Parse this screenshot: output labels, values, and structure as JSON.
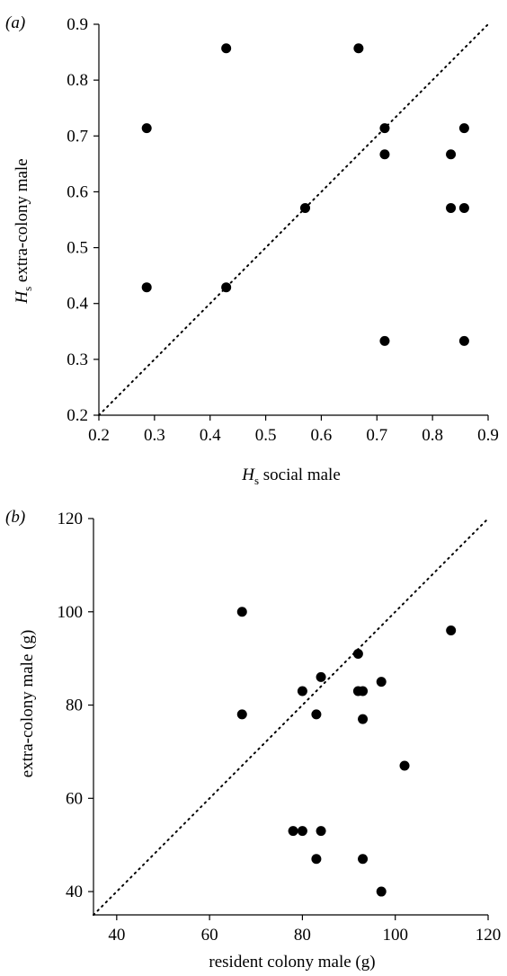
{
  "chart_data": [
    {
      "type": "scatter",
      "panel_label": "(a)",
      "xlabel": "H",
      "xlabel_sub": "s",
      "xlabel_rest": " social male",
      "ylabel": "H",
      "ylabel_sub": "s",
      "ylabel_rest": " extra-colony male",
      "xlim": [
        0.2,
        0.9
      ],
      "ylim": [
        0.2,
        0.9
      ],
      "xticks": [
        "0.2",
        "0.3",
        "0.4",
        "0.5",
        "0.6",
        "0.7",
        "0.8",
        "0.9"
      ],
      "yticks": [
        "0.2",
        "0.3",
        "0.4",
        "0.5",
        "0.6",
        "0.7",
        "0.8",
        "0.9"
      ],
      "reference_line": "y = x (dotted)",
      "grid": false,
      "points": [
        {
          "x": 0.286,
          "y": 0.714
        },
        {
          "x": 0.286,
          "y": 0.429
        },
        {
          "x": 0.429,
          "y": 0.857
        },
        {
          "x": 0.429,
          "y": 0.429
        },
        {
          "x": 0.571,
          "y": 0.571
        },
        {
          "x": 0.667,
          "y": 0.857
        },
        {
          "x": 0.714,
          "y": 0.714
        },
        {
          "x": 0.714,
          "y": 0.667
        },
        {
          "x": 0.714,
          "y": 0.333
        },
        {
          "x": 0.833,
          "y": 0.667
        },
        {
          "x": 0.833,
          "y": 0.571
        },
        {
          "x": 0.857,
          "y": 0.714
        },
        {
          "x": 0.857,
          "y": 0.571
        },
        {
          "x": 0.857,
          "y": 0.333
        }
      ]
    },
    {
      "type": "scatter",
      "panel_label": "(b)",
      "xlabel": "resident colony male (g)",
      "ylabel": "extra-colony male (g)",
      "xlim": [
        35,
        120
      ],
      "ylim": [
        35,
        120
      ],
      "xticks": [
        "40",
        "60",
        "80",
        "100",
        "120"
      ],
      "yticks": [
        "40",
        "60",
        "80",
        "100",
        "120"
      ],
      "reference_line": "y = x (dotted)",
      "grid": false,
      "points": [
        {
          "x": 67,
          "y": 100
        },
        {
          "x": 67,
          "y": 78
        },
        {
          "x": 80,
          "y": 83
        },
        {
          "x": 84,
          "y": 86
        },
        {
          "x": 83,
          "y": 78
        },
        {
          "x": 92,
          "y": 91
        },
        {
          "x": 92,
          "y": 83
        },
        {
          "x": 93,
          "y": 83
        },
        {
          "x": 93,
          "y": 77
        },
        {
          "x": 97,
          "y": 85
        },
        {
          "x": 112,
          "y": 96
        },
        {
          "x": 102,
          "y": 67
        },
        {
          "x": 78,
          "y": 53
        },
        {
          "x": 80,
          "y": 53
        },
        {
          "x": 84,
          "y": 53
        },
        {
          "x": 83,
          "y": 47
        },
        {
          "x": 93,
          "y": 47
        },
        {
          "x": 97,
          "y": 40
        }
      ]
    }
  ]
}
